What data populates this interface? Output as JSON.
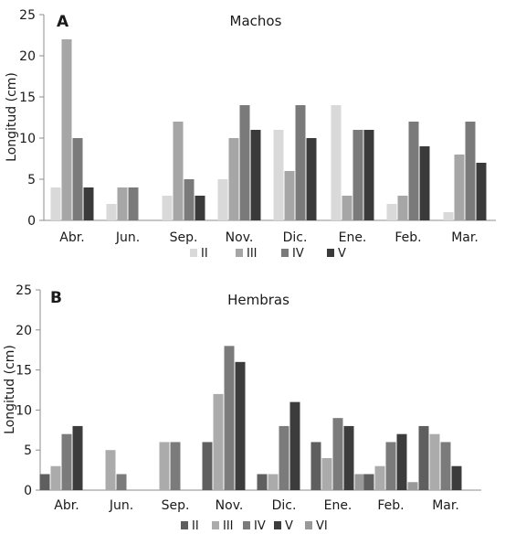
{
  "chart_data": [
    {
      "type": "bar",
      "panel_label": "A",
      "title": "Machos",
      "ylabel": "Longitud (cm)",
      "xlabel": "",
      "ylim": [
        0,
        25
      ],
      "yticks": [
        0,
        5,
        10,
        15,
        20,
        25
      ],
      "categories": [
        "Abr.",
        "Jun.",
        "Sep.",
        "Nov.",
        "Dic.",
        "Ene.",
        "Feb.",
        "Mar."
      ],
      "series": [
        {
          "name": "II",
          "color": "#d9d9d9",
          "values": [
            4,
            2,
            3,
            5,
            11,
            14,
            2,
            1
          ]
        },
        {
          "name": "III",
          "color": "#a6a6a6",
          "values": [
            22,
            4,
            12,
            10,
            6,
            3,
            3,
            8
          ]
        },
        {
          "name": "IV",
          "color": "#7a7a7a",
          "values": [
            10,
            4,
            5,
            14,
            14,
            11,
            12,
            12
          ]
        },
        {
          "name": "V",
          "color": "#3a3a3a",
          "values": [
            4,
            0,
            3,
            11,
            10,
            11,
            9,
            7
          ]
        }
      ],
      "legend_position": "bottom",
      "grid": false
    },
    {
      "type": "bar",
      "panel_label": "B",
      "title": "Hembras",
      "ylabel": "Longitud (cm)",
      "xlabel": "",
      "ylim": [
        0,
        25
      ],
      "yticks": [
        0,
        5,
        10,
        15,
        20,
        25
      ],
      "categories": [
        "Abr.",
        "Jun.",
        "Sep.",
        "Nov.",
        "Dic.",
        "Ene.",
        "Feb.",
        "Mar."
      ],
      "series": [
        {
          "name": "II",
          "color": "#5f5f5f",
          "values": [
            2,
            0,
            0,
            6,
            2,
            6,
            2,
            8
          ]
        },
        {
          "name": "III",
          "color": "#ababab",
          "values": [
            3,
            5,
            6,
            12,
            2,
            4,
            3,
            7
          ]
        },
        {
          "name": "IV",
          "color": "#7b7b7b",
          "values": [
            7,
            2,
            6,
            18,
            8,
            9,
            6,
            6
          ]
        },
        {
          "name": "V",
          "color": "#3c3c3c",
          "values": [
            8,
            0,
            0,
            16,
            11,
            8,
            7,
            3
          ]
        },
        {
          "name": "VI",
          "color": "#999999",
          "values": [
            0,
            0,
            0,
            0,
            0,
            2,
            1,
            0
          ]
        }
      ],
      "legend_position": "bottom",
      "grid": false
    }
  ]
}
